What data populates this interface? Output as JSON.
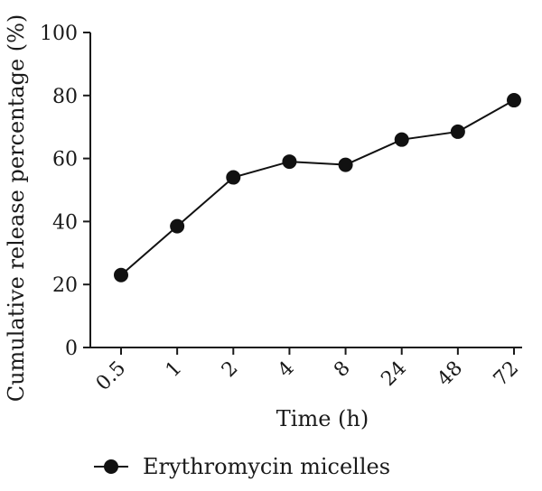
{
  "chart_data": {
    "type": "line",
    "xlabel": "Time (h)",
    "ylabel": "Cumulative release percentage (%)",
    "categories": [
      "0.5",
      "1",
      "2",
      "4",
      "8",
      "24",
      "48",
      "72"
    ],
    "series": [
      {
        "name": "Erythromycin micelles",
        "values": [
          23,
          38.5,
          54,
          59,
          58,
          66,
          68.5,
          78.5
        ]
      }
    ],
    "ylim": [
      0,
      100
    ],
    "yticks": [
      0,
      20,
      40,
      60,
      80,
      100
    ],
    "grid": false,
    "legend_position": "bottom",
    "marker": "filled-circle",
    "colors": {
      "series": "#111111",
      "axis": "#1a1a1a"
    }
  }
}
